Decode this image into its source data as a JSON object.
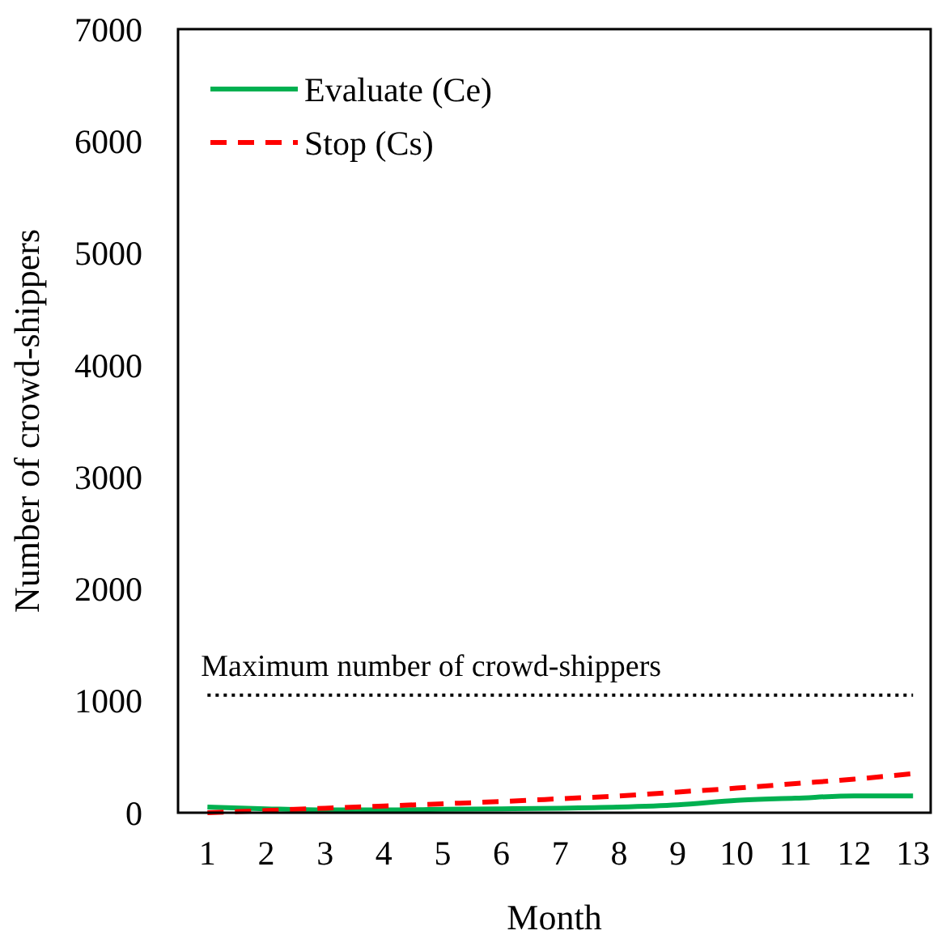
{
  "chart_data": {
    "type": "line",
    "xlabel": "Month",
    "ylabel": "Number of crowd-shippers",
    "x": [
      1,
      2,
      3,
      4,
      5,
      6,
      7,
      8,
      9,
      10,
      11,
      12,
      13
    ],
    "xlim": [
      0.5,
      13.3
    ],
    "xticks": [
      1,
      2,
      3,
      4,
      5,
      6,
      7,
      8,
      9,
      10,
      11,
      12,
      13
    ],
    "ylim": [
      0,
      7000
    ],
    "yticks": [
      0,
      1000,
      2000,
      3000,
      4000,
      5000,
      6000,
      7000
    ],
    "series": [
      {
        "name": "Evaluate (Ce)",
        "color": "#00b050",
        "line_style": "solid",
        "values": [
          50,
          35,
          25,
          25,
          30,
          35,
          40,
          50,
          70,
          110,
          130,
          150,
          150
        ]
      },
      {
        "name": "Stop (Cs)",
        "color": "#ff0000",
        "line_style": "dashed",
        "values": [
          0,
          20,
          40,
          60,
          80,
          100,
          125,
          150,
          185,
          220,
          260,
          300,
          350
        ]
      }
    ],
    "ref_lines": [
      {
        "axis": "y",
        "value": 1050,
        "label": "Maximum number of crowd-shippers",
        "color": "#000000",
        "line_style": "dotted"
      }
    ],
    "legend": "top left",
    "grid": false
  }
}
